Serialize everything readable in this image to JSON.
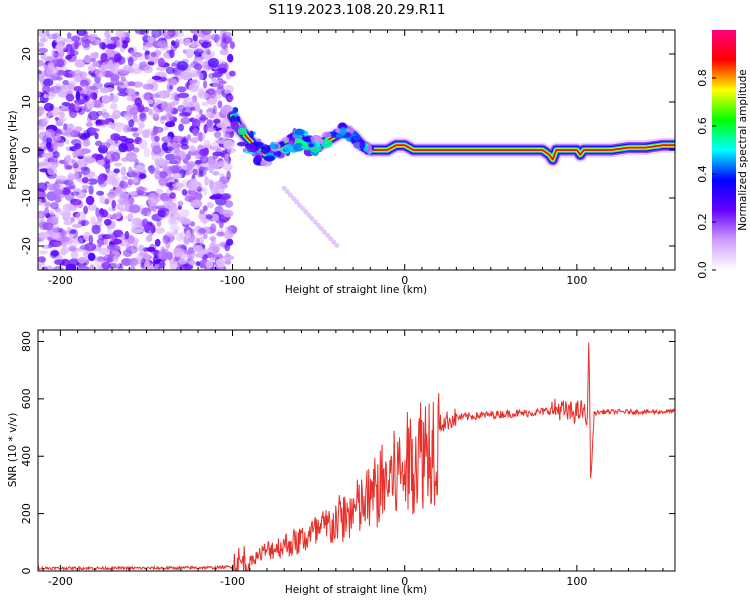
{
  "title": "S119.2023.108.20.29.R11",
  "chart_data": [
    {
      "type": "heatmap",
      "xlabel": "Height of straight line (km)",
      "ylabel": "Frequency (Hz)",
      "xlim": [
        -213,
        157
      ],
      "ylim": [
        -25,
        25
      ],
      "xticks": [
        -200,
        -100,
        0,
        100
      ],
      "yticks": [
        -20,
        -10,
        0,
        10,
        20
      ],
      "colorbar": {
        "label": "Normalized spectral amplitude",
        "range": [
          0,
          1
        ],
        "ticks": [
          0.0,
          0.2,
          0.4,
          0.6,
          0.8
        ],
        "tick_labels": [
          "0.0",
          "0.2",
          "0.4",
          "0.6",
          "0.8"
        ],
        "colormap": [
          "#ffffff",
          "#cf9bff",
          "#6600ff",
          "#0000ff",
          "#00ffff",
          "#00ff00",
          "#ffff00",
          "#ff0000",
          "#ff0080"
        ]
      },
      "ridge": {
        "x": [
          -100,
          -95,
          -90,
          -85,
          -80,
          -75,
          -70,
          -65,
          -60,
          -55,
          -50,
          -45,
          -40,
          -35,
          -30,
          -25,
          -20,
          -15,
          -10,
          -5,
          0,
          5,
          10,
          20,
          40,
          60,
          80,
          84,
          86,
          88,
          90,
          95,
          100,
          102,
          104,
          110,
          120,
          130,
          140,
          150,
          157
        ],
        "y": [
          7,
          4,
          2,
          0,
          -1,
          0,
          1,
          2,
          2,
          1,
          1,
          2,
          3,
          4,
          3,
          1,
          0,
          0,
          0,
          1,
          1,
          0,
          0,
          0,
          0,
          0,
          0,
          -1,
          -2,
          0,
          0,
          0,
          0,
          -1,
          0,
          0,
          0,
          0.5,
          0.5,
          1,
          1
        ]
      }
    },
    {
      "type": "line",
      "xlabel": "Height of straight line (km)",
      "ylabel": "SNR (10 * v/v)",
      "xlim": [
        -213,
        157
      ],
      "ylim": [
        0,
        840
      ],
      "xticks": [
        -200,
        -100,
        0,
        100
      ],
      "yticks": [
        0,
        200,
        400,
        600,
        800
      ],
      "series": [
        {
          "color": "#e8302a",
          "x": [
            -213,
            -200,
            -150,
            -110,
            -100,
            -95,
            -90,
            -85,
            -80,
            -75,
            -70,
            -65,
            -60,
            -55,
            -50,
            -45,
            -40,
            -35,
            -30,
            -25,
            -20,
            -15,
            -10,
            -5,
            0,
            5,
            10,
            15,
            20,
            25,
            30,
            40,
            50,
            60,
            70,
            80,
            85,
            90,
            95,
            100,
            104,
            106,
            107,
            108,
            110,
            115,
            120,
            130,
            140,
            150,
            157
          ],
          "y": [
            10,
            10,
            10,
            12,
            15,
            25,
            40,
            60,
            80,
            90,
            100,
            110,
            120,
            140,
            150,
            170,
            190,
            210,
            230,
            250,
            280,
            320,
            350,
            370,
            400,
            440,
            470,
            500,
            510,
            525,
            535,
            540,
            545,
            548,
            550,
            555,
            560,
            565,
            550,
            555,
            560,
            500,
            830,
            300,
            550,
            555,
            555,
            555,
            555,
            555,
            558
          ]
        }
      ]
    }
  ]
}
